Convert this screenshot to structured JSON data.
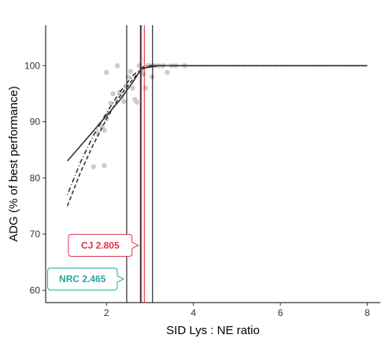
{
  "chart_data": {
    "type": "scatter",
    "xlabel": "SID Lys : NE ratio",
    "ylabel": "ADG (% of best performance)",
    "xlim": [
      0.6,
      8.3
    ],
    "ylim": [
      57.8,
      107.2
    ],
    "x_ticks": [
      2,
      4,
      6,
      8
    ],
    "y_ticks": [
      60,
      70,
      80,
      90,
      100
    ],
    "grid": false,
    "points": [
      [
        1.7,
        82
      ],
      [
        1.8,
        88
      ],
      [
        1.85,
        89.5
      ],
      [
        1.9,
        89
      ],
      [
        1.95,
        88.5
      ],
      [
        1.95,
        82.2
      ],
      [
        2.0,
        90.5
      ],
      [
        2.0,
        98.8
      ],
      [
        2.05,
        91.5
      ],
      [
        2.1,
        93.3
      ],
      [
        2.15,
        95
      ],
      [
        2.25,
        100
      ],
      [
        2.3,
        95.3
      ],
      [
        2.35,
        94.5
      ],
      [
        2.4,
        93.6
      ],
      [
        2.45,
        96.3
      ],
      [
        2.5,
        98
      ],
      [
        2.55,
        99
      ],
      [
        2.6,
        96
      ],
      [
        2.65,
        94
      ],
      [
        2.7,
        93.5
      ],
      [
        2.75,
        100
      ],
      [
        2.8,
        99
      ],
      [
        2.85,
        98.5
      ],
      [
        2.9,
        96
      ],
      [
        2.95,
        100
      ],
      [
        3.0,
        100
      ],
      [
        3.05,
        98
      ],
      [
        3.1,
        100
      ],
      [
        3.2,
        100
      ],
      [
        3.3,
        100
      ],
      [
        3.4,
        98.8
      ],
      [
        3.5,
        100
      ],
      [
        3.6,
        100
      ],
      [
        3.8,
        100
      ]
    ],
    "curves": [
      {
        "style": "solid",
        "points": [
          [
            1.1,
            83
          ],
          [
            1.5,
            86.6
          ],
          [
            1.9,
            90.2
          ],
          [
            2.3,
            93.8
          ],
          [
            2.6,
            97
          ],
          [
            2.75,
            98.8
          ],
          [
            2.8,
            99.5
          ],
          [
            3.2,
            100
          ],
          [
            8.0,
            100
          ]
        ]
      },
      {
        "style": "dashed",
        "points": [
          [
            1.1,
            75
          ],
          [
            1.4,
            81
          ],
          [
            1.7,
            86
          ],
          [
            2.0,
            90.5
          ],
          [
            2.3,
            94.5
          ],
          [
            2.6,
            97.5
          ],
          [
            2.8,
            99.3
          ],
          [
            3.0,
            100
          ],
          [
            8.0,
            100
          ]
        ]
      },
      {
        "style": "dotdash",
        "points": [
          [
            1.1,
            77
          ],
          [
            1.4,
            82.8
          ],
          [
            1.7,
            87.6
          ],
          [
            2.0,
            91.6
          ],
          [
            2.3,
            95.2
          ],
          [
            2.6,
            98.2
          ],
          [
            2.85,
            99.8
          ],
          [
            3.0,
            100
          ],
          [
            8.0,
            100
          ]
        ]
      }
    ],
    "vlines": [
      {
        "x": 2.465,
        "color": "#000000"
      },
      {
        "x": 2.78,
        "color": "#000000"
      },
      {
        "x": 2.805,
        "color": "#e31a1c"
      },
      {
        "x": 2.87,
        "color": "#e31a1c"
      },
      {
        "x": 3.06,
        "color": "#000000"
      }
    ],
    "callouts": [
      {
        "label": "CJ 2.805",
        "x": 2.805,
        "y": 68,
        "color": "#e0314b"
      },
      {
        "label": "NRC 2.465",
        "x": 2.465,
        "y": 62,
        "color": "#26a69a"
      }
    ],
    "colors": {
      "points": "#cccccc",
      "lines": "#333333"
    }
  }
}
